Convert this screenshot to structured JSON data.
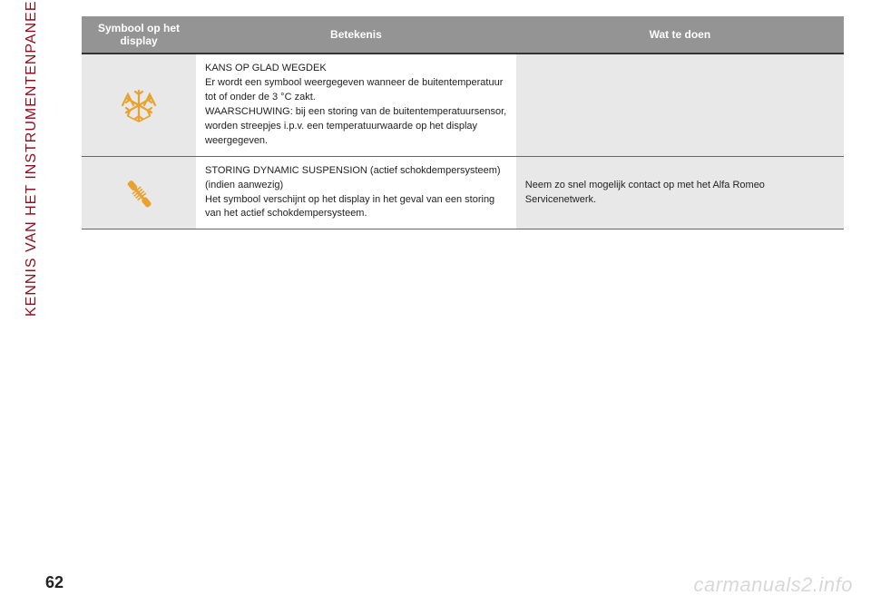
{
  "sidebar": {
    "title": "KENNIS VAN HET INSTRUMENTENPANEEL",
    "color": "#8d1020"
  },
  "table": {
    "headers": {
      "symbol": "Symbool op het display",
      "meaning": "Betekenis",
      "action": "Wat te doen"
    },
    "header_bg": "#949494",
    "header_text_color": "#ffffff",
    "zebra_bg": "#e8e8e8",
    "rows": [
      {
        "icon": "frost",
        "icon_color": "#e8a22e",
        "meaning": "KANS OP GLAD WEGDEK\nEr wordt een symbool weergegeven wanneer de buitentemperatuur tot of onder de 3 °C zakt.\nWAARSCHUWING: bij een storing van de buitentemperatuursensor, worden streepjes i.p.v. een temperatuurwaarde op het display weergegeven.",
        "action": ""
      },
      {
        "icon": "shock-absorber",
        "icon_color": "#e8a22e",
        "meaning": "STORING DYNAMIC SUSPENSION (actief schokdempersysteem)\n(indien aanwezig)\nHet symbool verschijnt op het display in het geval van een storing van het actief schokdempersysteem.",
        "action": "Neem zo snel mogelijk contact op met het Alfa Romeo Servicenetwerk."
      }
    ]
  },
  "page_number": "62",
  "watermark": "carmanuals2.info"
}
